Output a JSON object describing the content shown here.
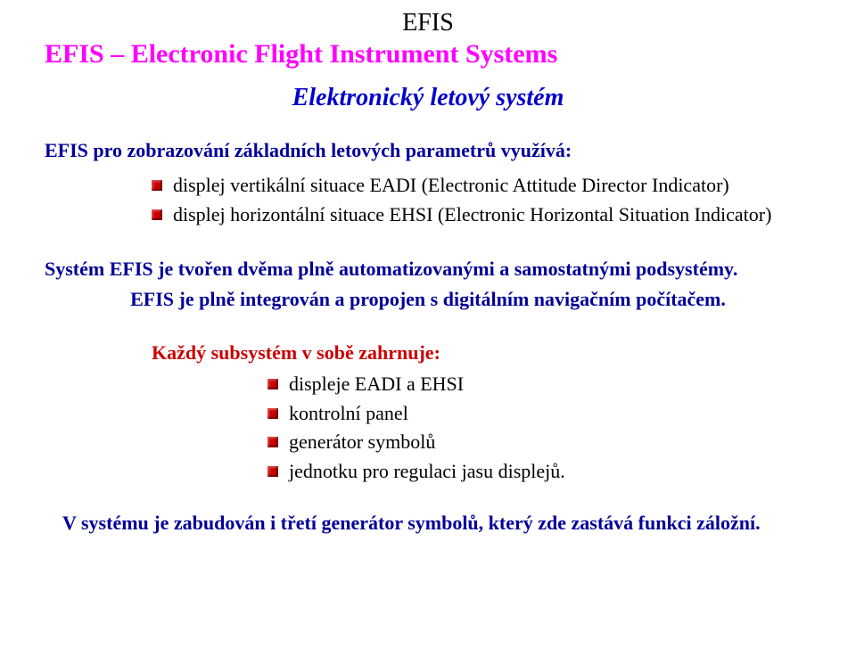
{
  "title_small": "EFIS",
  "title_main": "EFIS – Electronic Flight Instrument Systems",
  "subtitle": "Elektronický letový systém",
  "intro": "EFIS pro zobrazování základních letových parametrů využívá:",
  "bullets1": [
    "displej vertikální situace EADI (Electronic Attitude Director Indicator)",
    "displej horizontální situace EHSI (Electronic Horizontal Situation Indicator)"
  ],
  "para1": "Systém EFIS je tvořen dvěma plně automatizovanými a samostatnými podsystémy.",
  "para2": "EFIS je plně integrován a propojen s digitálním navigačním počítačem.",
  "sub_heading": "Každý subsystém v sobě zahrnuje:",
  "bullets2": [
    "displeje EADI a EHSI",
    "kontrolní panel",
    "generátor symbolů",
    "jednotku pro regulaci jasu displejů."
  ],
  "footer": "V systému je zabudován i třetí generátor symbolů, který zde zastává funkci záložní.",
  "colors": {
    "magenta": "#ff00ff",
    "blue": "#000099",
    "blue_italic": "#0000cc",
    "red": "#cc0000",
    "black": "#000000",
    "bg": "#ffffff"
  }
}
